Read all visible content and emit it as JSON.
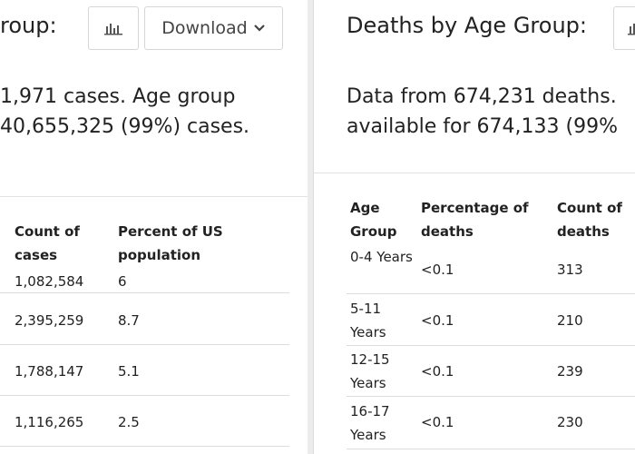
{
  "cases_panel": {
    "title": "roup:",
    "download_label": "Download",
    "summary_line1": "1,971 cases. Age group",
    "summary_line2": "40,655,325 (99%) cases.",
    "columns": [
      "Count of cases",
      "Percent of US population"
    ],
    "rows": [
      {
        "count": "1,082,584",
        "percent": "6"
      },
      {
        "count": "2,395,259",
        "percent": "8.7"
      },
      {
        "count": "1,788,147",
        "percent": "5.1"
      },
      {
        "count": "1,116,265",
        "percent": "2.5"
      }
    ]
  },
  "deaths_panel": {
    "title": "Deaths by Age Group:",
    "summary_line1": "Data from 674,231 deaths.",
    "summary_line2": "available for 674,133 (99%",
    "columns": [
      "Age Group",
      "Percentage of deaths",
      "Count of deaths"
    ],
    "rows": [
      {
        "age": "0-4 Years",
        "percent": "<0.1",
        "count": "313"
      },
      {
        "age": "5-11 Years",
        "percent": "<0.1",
        "count": "210"
      },
      {
        "age": "12-15 Years",
        "percent": "<0.1",
        "count": "239"
      },
      {
        "age": "16-17 Years",
        "percent": "<0.1",
        "count": "230"
      }
    ]
  },
  "icons": {
    "chart_toggle": "bar-chart-icon",
    "download_caret": "chevron-down-icon"
  },
  "colors": {
    "text": "#222222",
    "border": "#d6d6d6",
    "divider": "#dddddd"
  }
}
